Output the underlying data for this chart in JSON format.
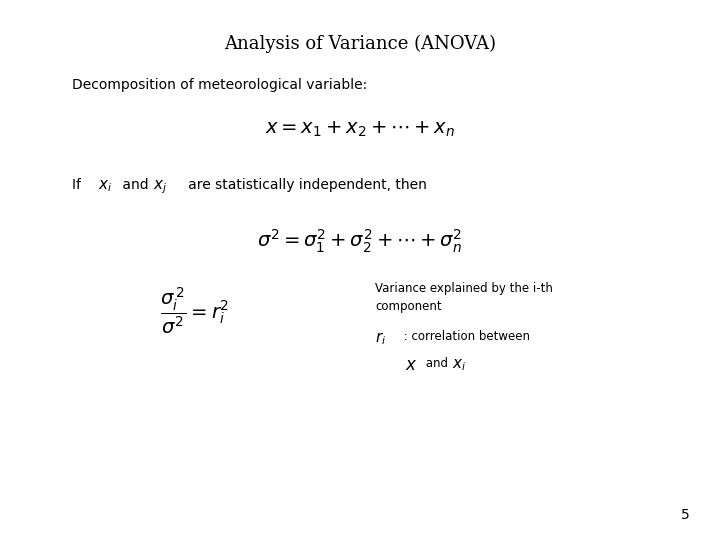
{
  "title": "Analysis of Variance (ANOVA)",
  "background_color": "#ffffff",
  "text_color": "#000000",
  "page_number": "5",
  "decomp_text": "Decomposition of meteorological variable:",
  "variance_note": "Variance explained by the i-th\ncomponent",
  "title_fontsize": 13,
  "body_fontsize": 10,
  "eq1_fontsize": 14,
  "eq2_fontsize": 14,
  "eq3_fontsize": 14,
  "small_fontsize": 8.5
}
